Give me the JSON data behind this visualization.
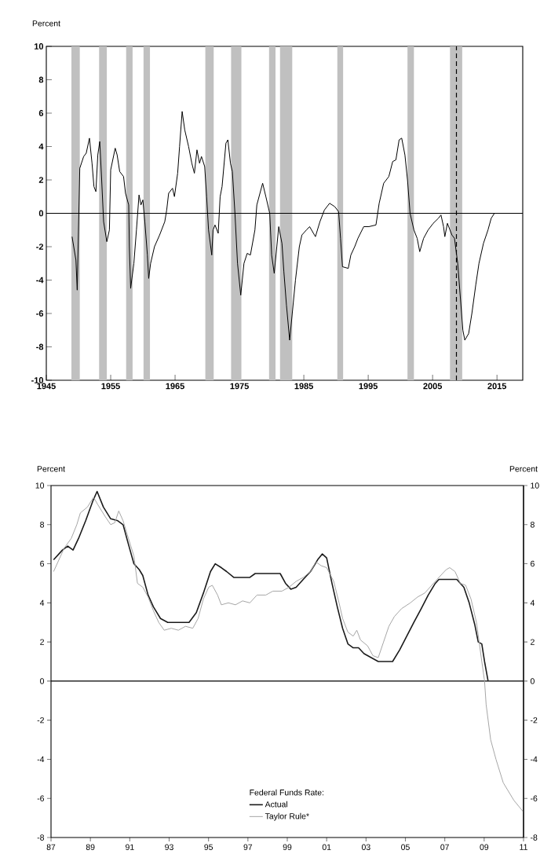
{
  "chart_data": [
    {
      "type": "line",
      "ylabel": "Percent",
      "xlim": [
        1945,
        2019
      ],
      "ylim": [
        -10,
        10
      ],
      "xticks": [
        1945,
        1955,
        1965,
        1975,
        1985,
        1995,
        2005,
        2015
      ],
      "yticks": [
        -10,
        -8,
        -6,
        -4,
        -2,
        0,
        2,
        4,
        6,
        8,
        10
      ],
      "bands": [
        {
          "axis": "x",
          "from": 1948.9,
          "to": 1950.2,
          "color": "#c0c0c0"
        },
        {
          "axis": "x",
          "from": 1953.2,
          "to": 1954.4,
          "color": "#c0c0c0"
        },
        {
          "axis": "x",
          "from": 1957.4,
          "to": 1958.4,
          "color": "#c0c0c0"
        },
        {
          "axis": "x",
          "from": 1960.1,
          "to": 1961.1,
          "color": "#c0c0c0"
        },
        {
          "axis": "x",
          "from": 1969.7,
          "to": 1971.0,
          "color": "#c0c0c0"
        },
        {
          "axis": "x",
          "from": 1973.7,
          "to": 1975.3,
          "color": "#c0c0c0"
        },
        {
          "axis": "x",
          "from": 1979.6,
          "to": 1980.6,
          "color": "#c0c0c0"
        },
        {
          "axis": "x",
          "from": 1981.3,
          "to": 1983.2,
          "color": "#c0c0c0"
        },
        {
          "axis": "x",
          "from": 1990.2,
          "to": 1991.1,
          "color": "#c0c0c0"
        },
        {
          "axis": "x",
          "from": 2001.1,
          "to": 2002.1,
          "color": "#c0c0c0"
        },
        {
          "axis": "x",
          "from": 2007.7,
          "to": 2009.6,
          "color": "#c0c0c0"
        }
      ],
      "ref_lines": [
        {
          "axis": "y",
          "value": 0,
          "color": "#000000",
          "line_style": "solid"
        },
        {
          "axis": "x",
          "value": 2008.7,
          "color": "#000000",
          "line_style": "dashed"
        }
      ],
      "marker": "none",
      "series": [
        {
          "color": "#000000",
          "x": [
            1949.0,
            1949.6,
            1949.8,
            1950.2,
            1950.8,
            1951.2,
            1951.7,
            1952.1,
            1952.4,
            1952.7,
            1953.0,
            1953.3,
            1953.6,
            1953.9,
            1954.4,
            1954.8,
            1955.0,
            1955.7,
            1956.0,
            1956.4,
            1957.0,
            1957.3,
            1957.8,
            1957.9,
            1958.1,
            1958.6,
            1959.0,
            1959.4,
            1959.7,
            1960.0,
            1960.3,
            1960.7,
            1960.9,
            1961.2,
            1961.8,
            1962.6,
            1963.4,
            1963.7,
            1964.0,
            1964.6,
            1964.9,
            1965.4,
            1965.7,
            1966.1,
            1966.5,
            1967.1,
            1967.6,
            1968.0,
            1968.4,
            1968.8,
            1969.1,
            1969.6,
            1969.9,
            1970.2,
            1970.7,
            1970.9,
            1971.2,
            1971.7,
            1972.0,
            1972.3,
            1972.9,
            1973.2,
            1973.6,
            1973.9,
            1974.3,
            1974.7,
            1975.2,
            1975.7,
            1976.2,
            1976.7,
            1977.4,
            1977.7,
            1978.6,
            1979.1,
            1979.7,
            1980.0,
            1980.4,
            1980.8,
            1981.1,
            1981.6,
            1981.9,
            1982.3,
            1982.8,
            1983.2,
            1983.7,
            1984.3,
            1984.7,
            1985.4,
            1985.9,
            1986.8,
            1987.5,
            1988.2,
            1989.0,
            1989.8,
            1990.4,
            1990.7,
            1991.0,
            1991.9,
            1992.3,
            1992.9,
            1993.4,
            1994.3,
            1995.1,
            1996.2,
            1996.7,
            1997.4,
            1998.2,
            1998.8,
            1999.3,
            1999.8,
            2000.2,
            2000.7,
            2001.1,
            2001.5,
            2002.1,
            2002.6,
            2003.0,
            2003.6,
            2004.3,
            2005.1,
            2005.9,
            2006.3,
            2006.7,
            2006.9,
            2007.3,
            2008.0,
            2008.4,
            2008.9,
            2009.3,
            2009.7,
            2010.0,
            2010.6,
            2011.1,
            2011.7,
            2012.2,
            2012.9,
            2013.6,
            2014.1,
            2014.6
          ],
          "values": [
            -1.4,
            -2.8,
            -4.6,
            2.7,
            3.4,
            3.6,
            4.5,
            3.0,
            1.6,
            1.3,
            3.5,
            4.3,
            2.0,
            -0.5,
            -1.7,
            -1.0,
            2.6,
            3.9,
            3.5,
            2.5,
            2.2,
            1.2,
            0.5,
            -2.0,
            -4.5,
            -3.0,
            -1.0,
            1.1,
            0.5,
            0.8,
            -0.5,
            -2.5,
            -3.9,
            -3.0,
            -2.0,
            -1.3,
            -0.5,
            0.2,
            1.2,
            1.5,
            1.0,
            2.4,
            4.0,
            6.1,
            5.0,
            4.0,
            3.0,
            2.4,
            3.8,
            3.0,
            3.4,
            2.8,
            1.0,
            -1.0,
            -2.5,
            -1.0,
            -0.7,
            -1.2,
            1.0,
            1.6,
            4.2,
            4.4,
            3.0,
            2.5,
            0.0,
            -3.0,
            -4.9,
            -3.0,
            -2.4,
            -2.5,
            -1.0,
            0.5,
            1.8,
            1.0,
            0.0,
            -2.5,
            -3.6,
            -2.0,
            -0.8,
            -1.8,
            -3.5,
            -5.5,
            -7.6,
            -6.0,
            -4.0,
            -2.0,
            -1.3,
            -1.0,
            -0.8,
            -1.4,
            -0.5,
            0.2,
            0.6,
            0.4,
            0.1,
            -1.5,
            -3.2,
            -3.3,
            -2.5,
            -2.0,
            -1.5,
            -0.8,
            -0.8,
            -0.7,
            0.6,
            1.8,
            2.2,
            3.1,
            3.2,
            4.4,
            4.5,
            3.5,
            2.0,
            0.0,
            -1.0,
            -1.5,
            -2.3,
            -1.5,
            -1.0,
            -0.6,
            -0.3,
            -0.1,
            -0.8,
            -1.4,
            -0.6,
            -1.3,
            -1.5,
            -3.0,
            -5.0,
            -7.0,
            -7.6,
            -7.2,
            -6.0,
            -4.3,
            -3.0,
            -1.8,
            -1.0,
            -0.3,
            0.0
          ]
        }
      ]
    },
    {
      "type": "line",
      "ylabel": "Percent",
      "y2label": "Percent",
      "legend_title": "Federal Funds Rate:",
      "legend": "bottom",
      "marker": "none",
      "xlim": [
        1987,
        2011
      ],
      "ylim": [
        -8,
        10
      ],
      "y2lim": [
        -8,
        10
      ],
      "xticks": [
        {
          "value": 1987,
          "label": "87"
        },
        {
          "value": 1989,
          "label": "89"
        },
        {
          "value": 1991,
          "label": "91"
        },
        {
          "value": 1993,
          "label": "93"
        },
        {
          "value": 1995,
          "label": "95"
        },
        {
          "value": 1997,
          "label": "97"
        },
        {
          "value": 1999,
          "label": "99"
        },
        {
          "value": 2001,
          "label": "01"
        },
        {
          "value": 2003,
          "label": "03"
        },
        {
          "value": 2005,
          "label": "05"
        },
        {
          "value": 2007,
          "label": "07"
        },
        {
          "value": 2009,
          "label": "09"
        },
        {
          "value": 2011,
          "label": "11"
        }
      ],
      "yticks": [
        -8,
        -6,
        -4,
        -2,
        0,
        2,
        4,
        6,
        8,
        10
      ],
      "y2ticks": [
        -8,
        -6,
        -4,
        -2,
        0,
        2,
        4,
        6,
        8,
        10
      ],
      "ref_lines": [
        {
          "axis": "y",
          "value": 0,
          "color": "#000000",
          "line_style": "solid"
        }
      ],
      "series": [
        {
          "name": "Actual",
          "color": "#1a1a1a",
          "x": [
            1987.13,
            1987.58,
            1987.85,
            1988.12,
            1988.4,
            1988.76,
            1989.12,
            1989.34,
            1989.66,
            1990.03,
            1990.39,
            1990.66,
            1990.93,
            1991.21,
            1991.48,
            1991.66,
            1991.93,
            1992.2,
            1992.56,
            1992.93,
            1993.47,
            1994.01,
            1994.38,
            1994.74,
            1995.1,
            1995.34,
            1995.65,
            1995.92,
            1996.28,
            1996.73,
            1997.1,
            1997.37,
            1997.82,
            1998.27,
            1998.64,
            1998.91,
            1999.18,
            1999.45,
            1999.81,
            2000.18,
            2000.54,
            2000.78,
            2001.0,
            2001.27,
            2001.54,
            2001.81,
            2002.08,
            2002.35,
            2002.62,
            2002.9,
            2003.26,
            2003.62,
            2003.98,
            2004.35,
            2004.71,
            2005.07,
            2005.43,
            2005.8,
            2006.16,
            2006.52,
            2006.7,
            2007.25,
            2007.61,
            2007.97,
            2008.24,
            2008.52,
            2008.7,
            2008.88,
            2009.02,
            2009.2
          ],
          "values": [
            6.2,
            6.7,
            6.9,
            6.7,
            7.3,
            8.2,
            9.2,
            9.7,
            8.9,
            8.3,
            8.2,
            8.0,
            7.0,
            6.0,
            5.7,
            5.4,
            4.4,
            3.8,
            3.2,
            3.0,
            3.0,
            3.0,
            3.5,
            4.5,
            5.6,
            6.0,
            5.8,
            5.6,
            5.3,
            5.3,
            5.3,
            5.5,
            5.5,
            5.5,
            5.5,
            5.0,
            4.7,
            4.8,
            5.2,
            5.6,
            6.2,
            6.5,
            6.3,
            5.0,
            3.8,
            2.7,
            1.9,
            1.7,
            1.7,
            1.4,
            1.2,
            1.0,
            1.0,
            1.0,
            1.6,
            2.3,
            3.0,
            3.7,
            4.4,
            5.0,
            5.2,
            5.2,
            5.2,
            4.8,
            4.0,
            2.9,
            2.0,
            1.9,
            1.0,
            0.0
          ]
        },
        {
          "name": "Taylor Rule*",
          "color": "#a6a6a6",
          "x": [
            1987.13,
            1987.4,
            1987.67,
            1988.03,
            1988.31,
            1988.49,
            1988.85,
            1989.16,
            1989.39,
            1989.76,
            1990.03,
            1990.24,
            1990.44,
            1990.66,
            1990.93,
            1991.21,
            1991.39,
            1991.66,
            1991.93,
            1992.2,
            1992.47,
            1992.75,
            1993.11,
            1993.47,
            1993.83,
            1994.2,
            1994.47,
            1994.74,
            1995.01,
            1995.19,
            1995.46,
            1995.65,
            1996.01,
            1996.37,
            1996.73,
            1997.1,
            1997.46,
            1997.91,
            1998.27,
            1998.73,
            1999.09,
            1999.45,
            1999.81,
            2000.18,
            2000.45,
            2000.72,
            2001.0,
            2001.36,
            2001.63,
            2001.81,
            2002.08,
            2002.35,
            2002.53,
            2002.72,
            2003.08,
            2003.35,
            2003.62,
            2003.89,
            2004.16,
            2004.44,
            2004.8,
            2005.25,
            2005.62,
            2005.98,
            2006.34,
            2006.7,
            2007.07,
            2007.25,
            2007.52,
            2007.79,
            2008.06,
            2008.33,
            2008.61,
            2008.88,
            2009.02,
            2009.1,
            2009.33,
            2009.6,
            2009.97,
            2010.51,
            2011.0
          ],
          "values": [
            5.6,
            6.2,
            6.8,
            7.3,
            8.0,
            8.6,
            8.9,
            9.4,
            9.0,
            8.4,
            8.0,
            8.1,
            8.7,
            8.2,
            7.3,
            6.4,
            5.0,
            4.8,
            4.3,
            3.6,
            3.0,
            2.6,
            2.7,
            2.6,
            2.8,
            2.7,
            3.2,
            4.2,
            4.8,
            4.9,
            4.4,
            3.9,
            4.0,
            3.9,
            4.1,
            4.0,
            4.4,
            4.4,
            4.6,
            4.6,
            4.8,
            5.1,
            5.3,
            5.6,
            6.1,
            5.9,
            5.8,
            5.1,
            4.0,
            3.2,
            2.5,
            2.3,
            2.6,
            2.1,
            1.8,
            1.3,
            1.2,
            2.0,
            2.8,
            3.3,
            3.7,
            4.0,
            4.3,
            4.5,
            4.9,
            5.3,
            5.7,
            5.8,
            5.6,
            5.0,
            4.9,
            4.2,
            3.0,
            1.0,
            0.0,
            -1.2,
            -3.0,
            -4.0,
            -5.2,
            -6.1,
            -6.7
          ]
        }
      ]
    }
  ]
}
